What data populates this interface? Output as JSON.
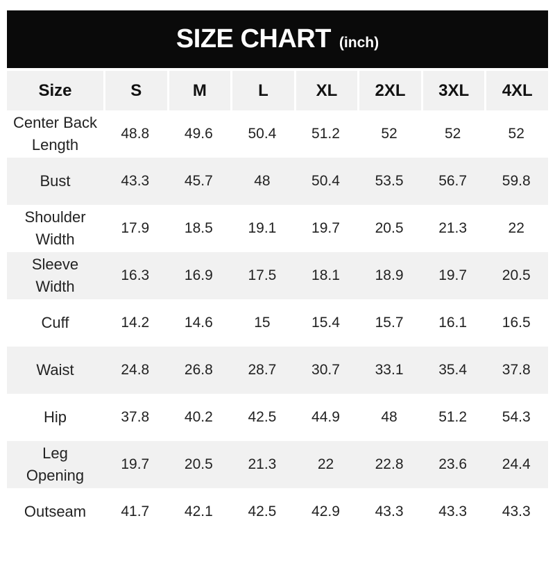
{
  "header": {
    "title": "SIZE CHART",
    "unit": "(inch)"
  },
  "colors": {
    "banner_bg": "#0a0a0a",
    "banner_text": "#ffffff",
    "alt_row_bg": "#f1f1f1",
    "row_bg": "#ffffff",
    "text": "#222222"
  },
  "chart_data": {
    "type": "table",
    "title": "SIZE CHART (inch)",
    "unit": "inch",
    "columns": [
      "Size",
      "S",
      "M",
      "L",
      "XL",
      "2XL",
      "3XL",
      "4XL"
    ],
    "rows": [
      {
        "label": "Center Back\nLength",
        "values": [
          "48.8",
          "49.6",
          "50.4",
          "51.2",
          "52",
          "52",
          "52"
        ]
      },
      {
        "label": "Bust",
        "values": [
          "43.3",
          "45.7",
          "48",
          "50.4",
          "53.5",
          "56.7",
          "59.8"
        ]
      },
      {
        "label": "Shoulder\nWidth",
        "values": [
          "17.9",
          "18.5",
          "19.1",
          "19.7",
          "20.5",
          "21.3",
          "22"
        ]
      },
      {
        "label": "Sleeve\nWidth",
        "values": [
          "16.3",
          "16.9",
          "17.5",
          "18.1",
          "18.9",
          "19.7",
          "20.5"
        ]
      },
      {
        "label": "Cuff",
        "values": [
          "14.2",
          "14.6",
          "15",
          "15.4",
          "15.7",
          "16.1",
          "16.5"
        ]
      },
      {
        "label": "Waist",
        "values": [
          "24.8",
          "26.8",
          "28.7",
          "30.7",
          "33.1",
          "35.4",
          "37.8"
        ]
      },
      {
        "label": "Hip",
        "values": [
          "37.8",
          "40.2",
          "42.5",
          "44.9",
          "48",
          "51.2",
          "54.3"
        ]
      },
      {
        "label": "Leg\nOpening",
        "values": [
          "19.7",
          "20.5",
          "21.3",
          "22",
          "22.8",
          "23.6",
          "24.4"
        ]
      },
      {
        "label": "Outseam",
        "values": [
          "41.7",
          "42.1",
          "42.5",
          "42.9",
          "43.3",
          "43.3",
          "43.3"
        ]
      }
    ]
  }
}
